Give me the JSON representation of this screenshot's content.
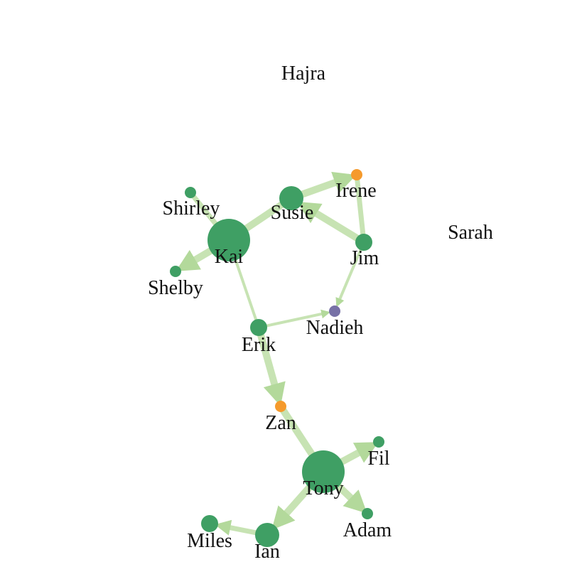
{
  "colors": {
    "group_green": "#3f9f64",
    "group_orange": "#f59a2c",
    "group_purple": "#7771a6",
    "edge": "#c7e3b3",
    "arrow": "#b3d99b"
  },
  "nodes": [
    {
      "id": "hajra",
      "label": "Hajra",
      "group": "none",
      "size": 0
    },
    {
      "id": "shirley",
      "label": "Shirley",
      "group": "green",
      "size": 1
    },
    {
      "id": "susie",
      "label": "Susie",
      "group": "green",
      "size": 3
    },
    {
      "id": "irene",
      "label": "Irene",
      "group": "orange",
      "size": 1
    },
    {
      "id": "sarah",
      "label": "Sarah",
      "group": "none",
      "size": 0
    },
    {
      "id": "kai",
      "label": "Kai",
      "group": "green",
      "size": 6
    },
    {
      "id": "jim",
      "label": "Jim",
      "group": "green",
      "size": 2
    },
    {
      "id": "shelby",
      "label": "Shelby",
      "group": "green",
      "size": 1
    },
    {
      "id": "nadieh",
      "label": "Nadieh",
      "group": "purple",
      "size": 1
    },
    {
      "id": "erik",
      "label": "Erik",
      "group": "green",
      "size": 2
    },
    {
      "id": "zan",
      "label": "Zan",
      "group": "orange",
      "size": 1
    },
    {
      "id": "fil",
      "label": "Fil",
      "group": "green",
      "size": 1
    },
    {
      "id": "tony",
      "label": "Tony",
      "group": "green",
      "size": 6
    },
    {
      "id": "adam",
      "label": "Adam",
      "group": "green",
      "size": 1
    },
    {
      "id": "miles",
      "label": "Miles",
      "group": "green",
      "size": 2
    },
    {
      "id": "ian",
      "label": "Ian",
      "group": "green",
      "size": 3
    }
  ],
  "edges": [
    {
      "source": "kai",
      "target": "shirley",
      "weight": 2,
      "directed": false
    },
    {
      "source": "kai",
      "target": "susie",
      "weight": 3,
      "directed": false
    },
    {
      "source": "kai",
      "target": "shelby",
      "weight": 3,
      "directed": true
    },
    {
      "source": "kai",
      "target": "erik",
      "weight": 1,
      "directed": false
    },
    {
      "source": "susie",
      "target": "irene",
      "weight": 3,
      "directed": true
    },
    {
      "source": "jim",
      "target": "irene",
      "weight": 2,
      "directed": false
    },
    {
      "source": "jim",
      "target": "susie",
      "weight": 3,
      "directed": true
    },
    {
      "source": "jim",
      "target": "nadieh",
      "weight": 1,
      "directed": true
    },
    {
      "source": "erik",
      "target": "nadieh",
      "weight": 1,
      "directed": true
    },
    {
      "source": "erik",
      "target": "zan",
      "weight": 3,
      "directed": true
    },
    {
      "source": "tony",
      "target": "zan",
      "weight": 3,
      "directed": false
    },
    {
      "source": "tony",
      "target": "fil",
      "weight": 3,
      "directed": true
    },
    {
      "source": "tony",
      "target": "adam",
      "weight": 3,
      "directed": true
    },
    {
      "source": "tony",
      "target": "ian",
      "weight": 3,
      "directed": true
    },
    {
      "source": "ian",
      "target": "miles",
      "weight": 2,
      "directed": true
    }
  ]
}
